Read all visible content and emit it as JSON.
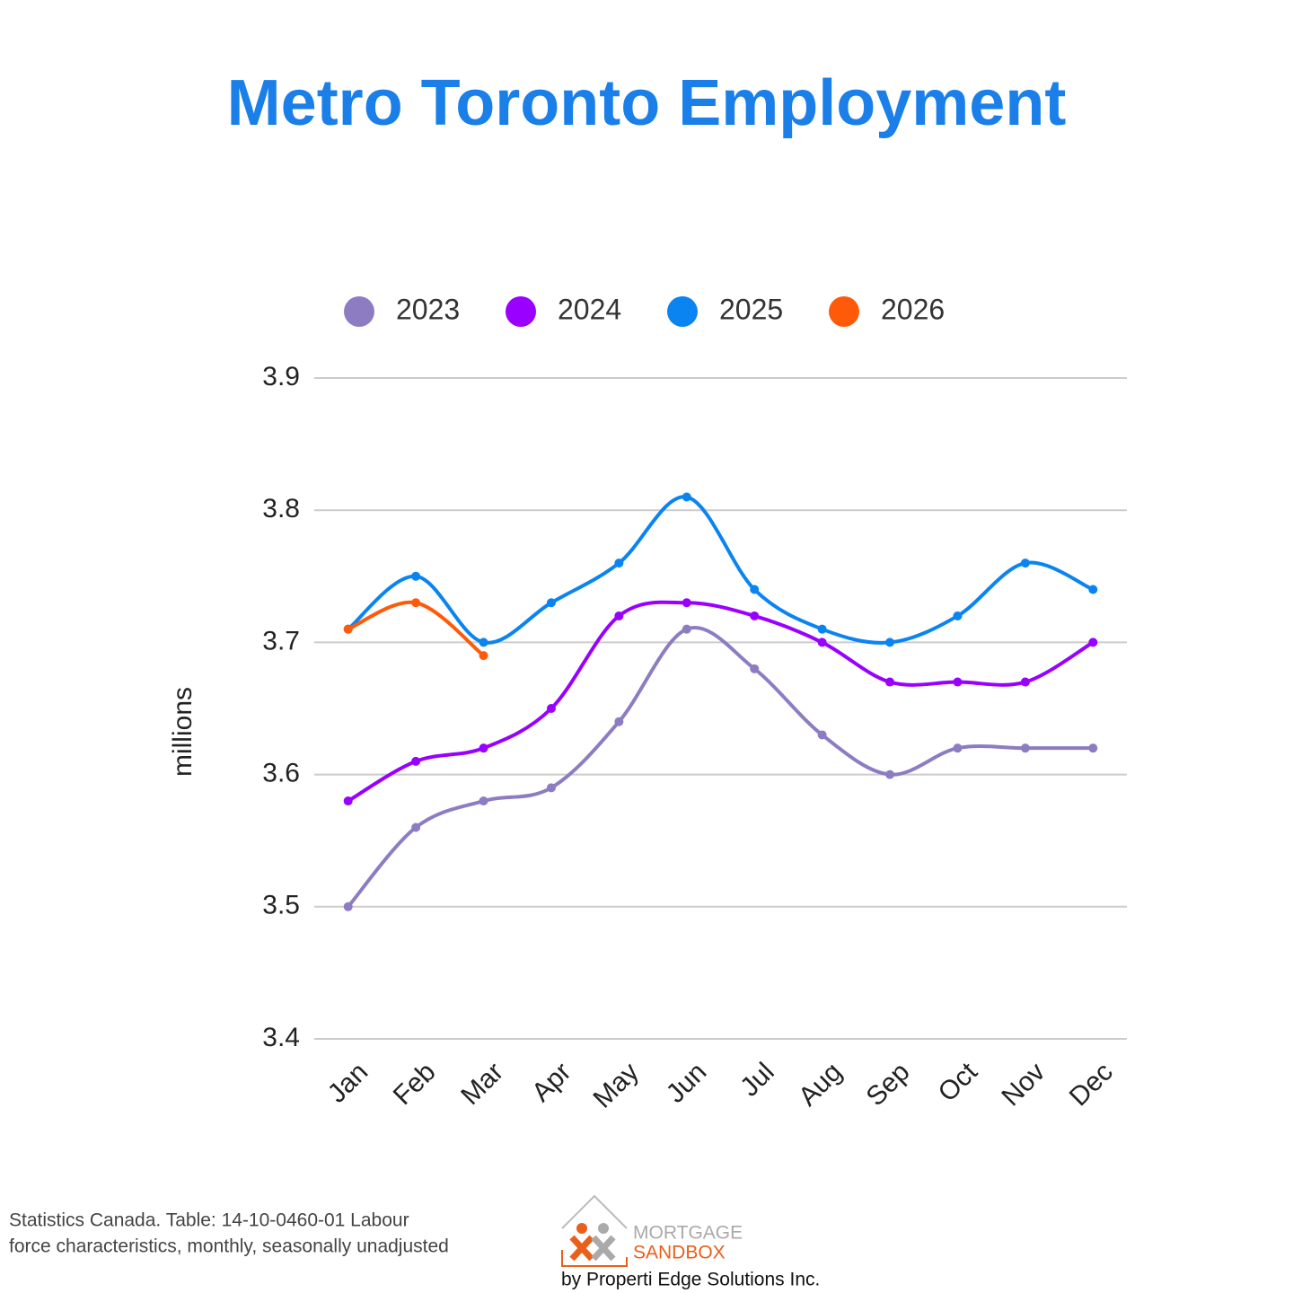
{
  "chart_data": {
    "type": "line",
    "title": "Metro Toronto Employment",
    "y_label": "millions",
    "categories": [
      "Jan",
      "Feb",
      "Mar",
      "Apr",
      "May",
      "Jun",
      "Jul",
      "Aug",
      "Sep",
      "Oct",
      "Nov",
      "Dec"
    ],
    "series": [
      {
        "name": "2023",
        "color": "#8e7cc3",
        "values": [
          3.5,
          3.56,
          3.58,
          3.59,
          3.64,
          3.71,
          3.68,
          3.63,
          3.6,
          3.62,
          3.62,
          3.62
        ]
      },
      {
        "name": "2024",
        "color": "#9900ff",
        "values": [
          3.58,
          3.61,
          3.62,
          3.65,
          3.72,
          3.73,
          3.72,
          3.7,
          3.67,
          3.67,
          3.67,
          3.7
        ]
      },
      {
        "name": "2025",
        "color": "#0a84f0",
        "values": [
          3.71,
          3.75,
          3.7,
          3.73,
          3.76,
          3.81,
          3.74,
          3.71,
          3.7,
          3.72,
          3.76,
          3.74
        ]
      },
      {
        "name": "2026",
        "color": "#ff5a0a",
        "values": [
          3.71,
          3.73,
          3.69,
          null,
          null,
          null,
          null,
          null,
          null,
          null,
          null,
          null
        ]
      }
    ],
    "ylim": [
      3.4,
      3.9
    ],
    "yticks": [
      3.4,
      3.5,
      3.6,
      3.7,
      3.8,
      3.9
    ],
    "grid": true,
    "legend": "top",
    "smooth": true
  },
  "footer": {
    "source": [
      "Statistics Canada. Table: 14-10-0460-01  Labour",
      "force characteristics, monthly, seasonally unadjusted"
    ],
    "logo": [
      "MORTGAGE",
      "SANDBOX"
    ],
    "credit": "by Properti Edge Solutions Inc."
  }
}
